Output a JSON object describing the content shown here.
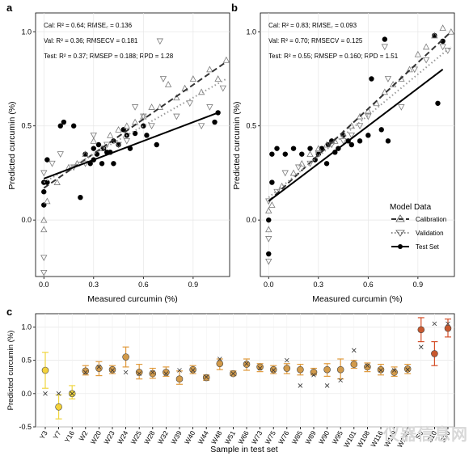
{
  "watermark": "仪器信息网",
  "panel_a": {
    "letter": "a",
    "stats": {
      "cal": "Cal: R² = 0.64; RMSE꜀ = 0.136",
      "val": "Val: R² = 0.36; RMSECV = 0.181",
      "test": "Test: R² = 0.37; RMSEP = 0.188; RPD = 1.28"
    },
    "xlabel": "Measured curcumin (%)",
    "ylabel": "Predicted curcumin (%)"
  },
  "panel_b": {
    "letter": "b",
    "stats": {
      "cal": "Cal: R² = 0.83; RMSE꜀ = 0.093",
      "val": "Val: R² = 0.70; RMSECV = 0.125",
      "test": "Test: R² = 0.55; RMSEP = 0.160; RPD = 1.51"
    },
    "xlabel": "Measured curcumin (%)",
    "ylabel": "Predicted curcumin (%)",
    "legend": {
      "title": "Model Data",
      "items": [
        "Calibration",
        "Validation",
        "Test Set"
      ]
    }
  },
  "panel_c": {
    "letter": "c",
    "xlabel": "Sample in test set",
    "ylabel": "Predicted curcumin (%)"
  },
  "chart_data": [
    {
      "type": "scatter",
      "panel": "a",
      "xlabel": "Measured curcumin (%)",
      "ylabel": "Predicted curcumin (%)",
      "xlim": [
        -0.05,
        1.12
      ],
      "ylim": [
        -0.3,
        1.1
      ],
      "xticks": [
        "0.0",
        "0.3",
        "0.6",
        "0.9"
      ],
      "yticks": [
        "0.0",
        "0.5",
        "1.0"
      ],
      "grid": true,
      "fit_lines": [
        {
          "name": "Calibration",
          "style": "dashed",
          "x": [
            0.0,
            1.1
          ],
          "y": [
            0.17,
            0.84
          ]
        },
        {
          "name": "Validation",
          "style": "dotted",
          "x": [
            0.0,
            1.1
          ],
          "y": [
            0.2,
            0.75
          ]
        },
        {
          "name": "Test Set",
          "style": "solid",
          "x": [
            0.0,
            1.05
          ],
          "y": [
            0.22,
            0.57
          ]
        }
      ],
      "series": [
        {
          "name": "Test Set",
          "marker": "filled-circle",
          "x": [
            0.0,
            0.0,
            0.0,
            0.02,
            0.02,
            0.1,
            0.12,
            0.18,
            0.22,
            0.25,
            0.28,
            0.3,
            0.3,
            0.32,
            0.33,
            0.35,
            0.36,
            0.38,
            0.4,
            0.42,
            0.42,
            0.45,
            0.48,
            0.5,
            0.52,
            0.55,
            0.6,
            0.62,
            0.68,
            1.03,
            1.05
          ],
          "y": [
            0.08,
            0.15,
            0.2,
            0.2,
            0.32,
            0.5,
            0.52,
            0.5,
            0.12,
            0.35,
            0.3,
            0.32,
            0.38,
            0.35,
            0.4,
            0.3,
            0.38,
            0.36,
            0.36,
            0.42,
            0.3,
            0.4,
            0.48,
            0.45,
            0.38,
            0.46,
            0.5,
            0.45,
            0.4,
            0.52,
            0.57
          ]
        },
        {
          "name": "Calibration",
          "marker": "open-triangle-up",
          "x": [
            0.0,
            0.0,
            0.02,
            0.08,
            0.15,
            0.2,
            0.25,
            0.3,
            0.35,
            0.4,
            0.45,
            0.5,
            0.55,
            0.6,
            0.65,
            0.7,
            0.75,
            0.8,
            0.85,
            0.9,
            0.95,
            1.0,
            1.05,
            1.1
          ],
          "y": [
            -0.05,
            0.0,
            0.1,
            0.2,
            0.28,
            0.3,
            0.35,
            0.42,
            0.38,
            0.45,
            0.48,
            0.5,
            0.52,
            0.55,
            0.6,
            0.6,
            0.72,
            0.65,
            0.7,
            0.75,
            0.68,
            0.8,
            0.75,
            0.85
          ]
        },
        {
          "name": "Validation",
          "marker": "open-triangle-down",
          "x": [
            0.0,
            0.0,
            0.0,
            0.05,
            0.1,
            0.18,
            0.25,
            0.3,
            0.38,
            0.45,
            0.5,
            0.55,
            0.6,
            0.65,
            0.7,
            0.72,
            0.8,
            0.88,
            0.95,
            1.0,
            1.08
          ],
          "y": [
            -0.28,
            -0.2,
            0.25,
            0.3,
            0.35,
            0.28,
            0.3,
            0.45,
            0.4,
            0.4,
            0.42,
            0.6,
            0.55,
            0.5,
            0.95,
            0.75,
            0.55,
            0.62,
            0.5,
            0.6,
            0.7
          ]
        }
      ]
    },
    {
      "type": "scatter",
      "panel": "b",
      "xlabel": "Measured curcumin (%)",
      "ylabel": "Predicted curcumin (%)",
      "xlim": [
        -0.05,
        1.12
      ],
      "ylim": [
        -0.3,
        1.1
      ],
      "xticks": [
        "0.0",
        "0.3",
        "0.6",
        "0.9"
      ],
      "yticks": [
        "0.0",
        "0.5",
        "1.0"
      ],
      "grid": true,
      "legend_position": "bottom-right",
      "fit_lines": [
        {
          "name": "Calibration",
          "style": "dashed",
          "x": [
            0.0,
            1.1
          ],
          "y": [
            0.1,
            1.0
          ]
        },
        {
          "name": "Validation",
          "style": "dotted",
          "x": [
            0.0,
            1.1
          ],
          "y": [
            0.12,
            0.92
          ]
        },
        {
          "name": "Test Set",
          "style": "solid",
          "x": [
            0.0,
            1.05
          ],
          "y": [
            0.1,
            0.8
          ]
        }
      ],
      "series": [
        {
          "name": "Test Set",
          "marker": "filled-circle",
          "x": [
            0.0,
            0.0,
            0.02,
            0.02,
            0.05,
            0.1,
            0.15,
            0.2,
            0.25,
            0.28,
            0.3,
            0.32,
            0.35,
            0.36,
            0.38,
            0.4,
            0.42,
            0.45,
            0.48,
            0.5,
            0.55,
            0.6,
            0.62,
            0.68,
            0.7,
            0.72,
            1.0,
            1.02,
            1.05
          ],
          "y": [
            -0.18,
            0.0,
            0.35,
            0.2,
            0.38,
            0.35,
            0.38,
            0.35,
            0.38,
            0.32,
            0.35,
            0.38,
            0.3,
            0.4,
            0.42,
            0.36,
            0.38,
            0.45,
            0.42,
            0.4,
            0.42,
            0.45,
            0.75,
            0.48,
            0.96,
            0.42,
            0.98,
            0.62,
            0.95
          ]
        },
        {
          "name": "Calibration",
          "marker": "open-triangle-up",
          "x": [
            0.0,
            0.0,
            0.02,
            0.08,
            0.15,
            0.2,
            0.25,
            0.3,
            0.35,
            0.4,
            0.45,
            0.5,
            0.55,
            0.6,
            0.65,
            0.7,
            0.75,
            0.8,
            0.85,
            0.9,
            0.95,
            1.0,
            1.05,
            1.1
          ],
          "y": [
            -0.05,
            0.05,
            0.08,
            0.18,
            0.25,
            0.3,
            0.35,
            0.38,
            0.4,
            0.42,
            0.46,
            0.5,
            0.55,
            0.58,
            0.62,
            0.68,
            0.72,
            0.75,
            0.8,
            0.88,
            0.92,
            0.98,
            1.02,
            1.0
          ]
        },
        {
          "name": "Validation",
          "marker": "open-triangle-down",
          "x": [
            0.0,
            0.0,
            0.0,
            0.05,
            0.1,
            0.18,
            0.25,
            0.3,
            0.38,
            0.45,
            0.5,
            0.55,
            0.6,
            0.7,
            0.72,
            0.8,
            0.88,
            0.95,
            1.05,
            1.08
          ],
          "y": [
            -0.22,
            -0.1,
            0.1,
            0.15,
            0.25,
            0.28,
            0.3,
            0.35,
            0.4,
            0.42,
            0.45,
            0.5,
            0.55,
            0.92,
            0.75,
            0.6,
            0.8,
            0.85,
            0.92,
            0.9
          ]
        }
      ]
    },
    {
      "type": "scatter",
      "panel": "c",
      "xlabel": "Sample in test set",
      "ylabel": "Predicted curcumin (%)",
      "ylim": [
        -0.5,
        1.2
      ],
      "yticks": [
        "-0.5",
        "0.0",
        "0.5",
        "1.0"
      ],
      "grid": true,
      "categories": [
        "Y3",
        "Y7",
        "Y16",
        "W2",
        "W20",
        "W23",
        "W24",
        "W25",
        "W28",
        "W32",
        "W39",
        "W40",
        "W44",
        "W48",
        "W51",
        "W66",
        "W73",
        "W75",
        "W76",
        "W85",
        "W89",
        "W90",
        "W95",
        "W101",
        "W108",
        "W116",
        "W119",
        "W130",
        "S9",
        "S10",
        "S30"
      ],
      "series": [
        {
          "name": "Predicted (mean)",
          "marker": "filled-circle",
          "values": [
            0.35,
            -0.2,
            0.0,
            0.34,
            0.38,
            0.36,
            0.55,
            0.32,
            0.3,
            0.32,
            0.22,
            0.36,
            0.24,
            0.45,
            0.3,
            0.44,
            0.4,
            0.36,
            0.38,
            0.36,
            0.32,
            0.36,
            0.36,
            0.44,
            0.4,
            0.36,
            0.32,
            0.37,
            0.96,
            0.6,
            0.98
          ],
          "err_low": [
            0.08,
            -0.38,
            -0.08,
            0.28,
            0.27,
            0.3,
            0.4,
            0.22,
            0.23,
            0.26,
            0.14,
            0.3,
            0.2,
            0.36,
            0.27,
            0.35,
            0.33,
            0.3,
            0.3,
            0.28,
            0.28,
            0.26,
            0.22,
            0.38,
            0.33,
            0.28,
            0.26,
            0.3,
            0.78,
            0.42,
            0.85
          ],
          "err_high": [
            0.62,
            -0.02,
            0.12,
            0.42,
            0.48,
            0.42,
            0.7,
            0.44,
            0.38,
            0.4,
            0.34,
            0.42,
            0.28,
            0.52,
            0.34,
            0.52,
            0.45,
            0.42,
            0.45,
            0.44,
            0.38,
            0.45,
            0.52,
            0.5,
            0.46,
            0.44,
            0.4,
            0.44,
            1.14,
            0.78,
            1.12
          ],
          "colors": [
            "#f4d23a",
            "#f4d23a",
            "#f0d640",
            "#d29a4a",
            "#d29a4a",
            "#d29a4a",
            "#d29a4a",
            "#d29a4a",
            "#d29a4a",
            "#d29a4a",
            "#d29a4a",
            "#d29a4a",
            "#d29a4a",
            "#d29a4a",
            "#d29a4a",
            "#d29a4a",
            "#d29a4a",
            "#d29a4a",
            "#d29a4a",
            "#d29a4a",
            "#d29a4a",
            "#d29a4a",
            "#d29a4a",
            "#d29a4a",
            "#d29a4a",
            "#d29a4a",
            "#d29a4a",
            "#d29a4a",
            "#c8582e",
            "#c8582e",
            "#c8582e"
          ]
        },
        {
          "name": "Measured",
          "marker": "x",
          "values": [
            0.0,
            0.0,
            0.0,
            0.32,
            0.4,
            0.35,
            0.32,
            0.3,
            0.32,
            0.3,
            0.35,
            0.35,
            0.25,
            0.52,
            0.3,
            0.45,
            0.38,
            0.35,
            0.5,
            0.12,
            0.28,
            0.12,
            0.2,
            0.65,
            0.42,
            0.35,
            0.35,
            0.36,
            0.7,
            1.05,
            1.05
          ]
        }
      ]
    }
  ],
  "colors": {
    "axis": "#000000",
    "grid": "#e6e6e6",
    "open_marker": "#7a7a7a",
    "filled_marker": "#000000",
    "errbar_yellow": "#f0d640",
    "errbar_orange": "#e09a3c",
    "errbar_red": "#d4502a"
  }
}
